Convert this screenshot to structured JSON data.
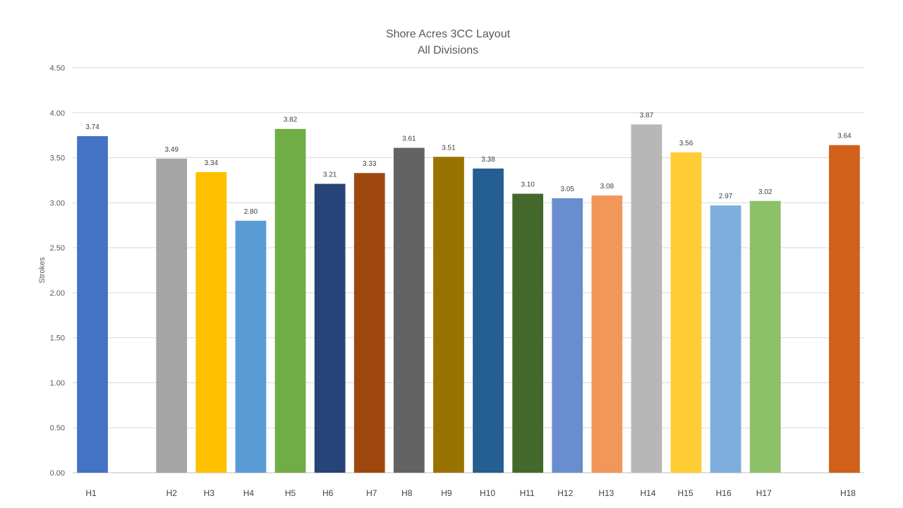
{
  "chart_data": {
    "type": "bar",
    "title": "Shore Acres 3CC Layout",
    "subtitle": "All Divisions",
    "xlabel": "",
    "ylabel": "Strokes",
    "ylim": [
      0,
      4.5
    ],
    "yticks": [
      "0.00",
      "0.50",
      "1.00",
      "1.50",
      "2.00",
      "2.50",
      "3.00",
      "3.50",
      "4.00",
      "4.50"
    ],
    "grid": true,
    "legend": "none",
    "categories": [
      "H1",
      "H2",
      "H3",
      "H4",
      "H5",
      "H6",
      "H7",
      "H8",
      "H9",
      "H10",
      "H11",
      "H12",
      "H13",
      "H14",
      "H15",
      "H16",
      "H17",
      "H18"
    ],
    "values": [
      3.74,
      3.49,
      3.34,
      2.8,
      3.82,
      3.21,
      3.33,
      3.61,
      3.51,
      3.38,
      3.1,
      3.05,
      3.08,
      3.87,
      3.56,
      2.97,
      3.02,
      3.64
    ],
    "value_labels": [
      "3.74",
      "3.49",
      "3.34",
      "2.80",
      "3.82",
      "3.21",
      "3.33",
      "3.61",
      "3.51",
      "3.38",
      "3.10",
      "3.05",
      "3.08",
      "3.87",
      "3.56",
      "2.97",
      "3.02",
      "3.64"
    ],
    "colors": [
      "#4472C4",
      "#A5A5A5",
      "#FFC000",
      "#5B9BD5",
      "#70AD47",
      "#264478",
      "#9E480E",
      "#636363",
      "#997300",
      "#255E91",
      "#43682B",
      "#698ED0",
      "#F1975A",
      "#B7B7B7",
      "#FFCD33",
      "#7CAFDD",
      "#8CC168",
      "#D0601A"
    ]
  }
}
